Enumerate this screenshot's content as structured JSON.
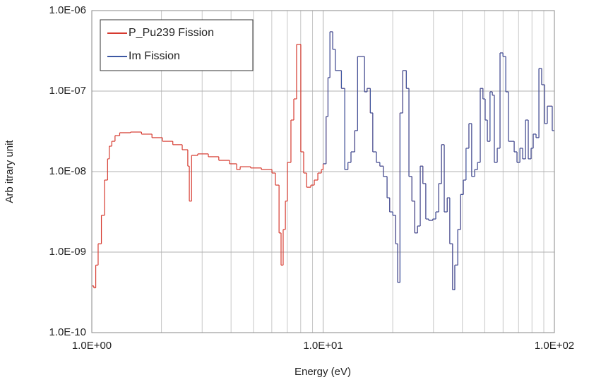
{
  "chart_data": {
    "type": "step",
    "xlabel": "Energy (eV)",
    "ylabel": "Arb itrary unit",
    "xscale": "log",
    "yscale": "log",
    "xlim": [
      1,
      100
    ],
    "ylim": [
      1e-10,
      1e-06
    ],
    "xticks": [
      {
        "value": 1,
        "label": "1.0E+00"
      },
      {
        "value": 10,
        "label": "1.0E+01"
      },
      {
        "value": 100,
        "label": "1.0E+02"
      }
    ],
    "xminorticks": [
      2,
      3,
      4,
      5,
      6,
      7,
      8,
      9,
      20,
      30,
      40,
      50,
      60,
      70,
      80,
      90
    ],
    "yticks": [
      {
        "value": 1e-10,
        "label": "1.0E-10"
      },
      {
        "value": 1e-09,
        "label": "1.0E-09"
      },
      {
        "value": 1e-08,
        "label": "1.0E-08"
      },
      {
        "value": 1e-07,
        "label": "1.0E-07"
      },
      {
        "value": 1e-06,
        "label": "1.0E-06"
      }
    ],
    "grid": true,
    "legend": "upper left",
    "x": [
      1,
      1.02,
      1.04,
      1.065,
      1.1,
      1.135,
      1.17,
      1.19,
      1.22,
      1.26,
      1.32,
      1.47,
      1.64,
      1.82,
      2.02,
      2.24,
      2.46,
      2.6,
      2.64,
      2.7,
      2.87,
      3.19,
      3.54,
      3.94,
      4.23,
      4.38,
      4.86,
      5.41,
      6.01,
      6.22,
      6.45,
      6.58,
      6.72,
      6.87,
      7.01,
      7.26,
      7.47,
      7.68,
      8.01,
      8.24,
      8.48,
      8.85,
      9.16,
      9.49,
      9.83,
      10.0,
      10.3,
      10.5,
      10.7,
      11.0,
      11.3,
      12.0,
      12.4,
      12.8,
      13.2,
      13.7,
      14.1,
      15.1,
      15.5,
      16.0,
      16.4,
      17.0,
      17.6,
      18.2,
      18.9,
      19.4,
      20.0,
      20.6,
      21.0,
      21.5,
      22.1,
      22.9,
      23.5,
      24.2,
      24.9,
      25.6,
      26.3,
      27.0,
      27.8,
      28.6,
      29.8,
      30.7,
      31.6,
      32.5,
      33.4,
      34.4,
      35.3,
      36.3,
      37.1,
      38.2,
      39.3,
      40.4,
      41.5,
      42.7,
      43.9,
      45.2,
      46.5,
      47.8,
      49.1,
      50.2,
      51.3,
      52.7,
      53.9,
      55.0,
      56.6,
      58.2,
      59.9,
      61.6,
      63.3,
      67.0,
      68.9,
      70.9,
      72.9,
      75.0,
      77.1,
      79.3,
      81.0,
      83.3,
      85.7,
      88.1,
      90.7,
      93.2,
      97.9
    ],
    "series": [
      {
        "name": "P_Pu239 Fission",
        "color": "#d63a2f",
        "values": [
          3.8e-10,
          3.6e-10,
          6.9e-10,
          1.27e-09,
          2.86e-09,
          7.85e-09,
          1.44e-08,
          2.07e-08,
          2.38e-08,
          2.8e-08,
          3.04e-08,
          3.1e-08,
          2.92e-08,
          2.64e-08,
          2.38e-08,
          2.16e-08,
          1.87e-08,
          1.17e-08,
          4.3e-09,
          1.59e-08,
          1.66e-08,
          1.53e-08,
          1.38e-08,
          1.25e-08,
          1.06e-08,
          1.15e-08,
          1.11e-08,
          1.06e-08,
          9.6e-09,
          6.8e-09,
          1.73e-09,
          6.9e-10,
          1.91e-09,
          4.3e-09,
          1.3e-08,
          4.37e-08,
          8e-08,
          3.8e-07,
          1.76e-08,
          9.6e-09,
          6.4e-09,
          6.8e-09,
          7.85e-09,
          9.6e-09,
          1.06e-08,
          1.25e-08,
          4.83e-08,
          1.47e-07,
          5.46e-07,
          3.3e-07,
          1.8e-07,
          1.08e-07,
          1.06e-08,
          1.3e-08,
          1.76e-08,
          3.23e-08,
          2.69e-07,
          9.8e-08,
          1.08e-07,
          5.35e-08,
          1.76e-08,
          1.3e-08,
          1.17e-08,
          8.7e-09,
          4.73e-09,
          3.16e-09,
          2.86e-09,
          1.27e-09,
          4.2e-10,
          5.35e-08,
          1.8e-07,
          1.08e-07,
          8.7e-09,
          4.3e-09,
          1.73e-09,
          2.11e-09,
          1.17e-08,
          7.1e-09,
          2.58e-09,
          2.48e-09,
          2.58e-09,
          3.16e-09,
          7.1e-09,
          2.16e-08,
          3.16e-09,
          4.73e-09,
          1.27e-09,
          3.4e-10,
          6.9e-10,
          1.91e-09,
          5.2e-09,
          7.85e-09,
          1.95e-08,
          3.95e-08,
          8.7e-09,
          1.06e-08,
          1.3e-08,
          1.08e-07,
          8e-08,
          4.37e-08,
          2.38e-08,
          9.8e-08,
          8.9e-08,
          1.3e-08,
          1.95e-08,
          2.98e-07,
          2.69e-07,
          9.8e-08,
          2.38e-08,
          1.76e-08,
          1.3e-08,
          1.95e-08,
          1.44e-08,
          4.37e-08,
          1.44e-08,
          1.95e-08,
          2.92e-08,
          2.64e-08,
          1.91e-07,
          1.2e-07,
          3.95e-08,
          6.5e-08,
          3.23e-08
        ]
      },
      {
        "name": "Im Fission",
        "color": "#3d58a3",
        "values": [
          null,
          null,
          null,
          null,
          null,
          null,
          null,
          null,
          null,
          null,
          null,
          null,
          null,
          null,
          null,
          null,
          null,
          null,
          null,
          null,
          null,
          null,
          null,
          null,
          null,
          null,
          null,
          null,
          null,
          null,
          null,
          null,
          null,
          null,
          null,
          null,
          null,
          null,
          null,
          null,
          null,
          null,
          null,
          null,
          null,
          1.25e-08,
          4.83e-08,
          1.47e-07,
          5.46e-07,
          3.3e-07,
          1.8e-07,
          1.08e-07,
          1.06e-08,
          1.3e-08,
          1.76e-08,
          3.23e-08,
          2.69e-07,
          9.8e-08,
          1.08e-07,
          5.35e-08,
          1.76e-08,
          1.3e-08,
          1.17e-08,
          8.7e-09,
          4.73e-09,
          3.16e-09,
          2.86e-09,
          1.27e-09,
          4.2e-10,
          5.35e-08,
          1.8e-07,
          1.08e-07,
          8.7e-09,
          4.3e-09,
          1.73e-09,
          2.11e-09,
          1.17e-08,
          7.1e-09,
          2.58e-09,
          2.48e-09,
          2.58e-09,
          3.16e-09,
          7.1e-09,
          2.16e-08,
          3.16e-09,
          4.73e-09,
          1.27e-09,
          3.4e-10,
          6.9e-10,
          1.91e-09,
          5.2e-09,
          7.85e-09,
          1.95e-08,
          3.95e-08,
          8.7e-09,
          1.06e-08,
          1.3e-08,
          1.08e-07,
          8e-08,
          4.37e-08,
          2.38e-08,
          9.8e-08,
          8.9e-08,
          1.3e-08,
          1.95e-08,
          2.98e-07,
          2.69e-07,
          9.8e-08,
          2.38e-08,
          1.76e-08,
          1.3e-08,
          1.95e-08,
          1.44e-08,
          4.37e-08,
          1.44e-08,
          1.95e-08,
          2.92e-08,
          2.64e-08,
          1.91e-07,
          1.2e-07,
          3.95e-08,
          6.5e-08,
          3.23e-08
        ]
      }
    ]
  }
}
